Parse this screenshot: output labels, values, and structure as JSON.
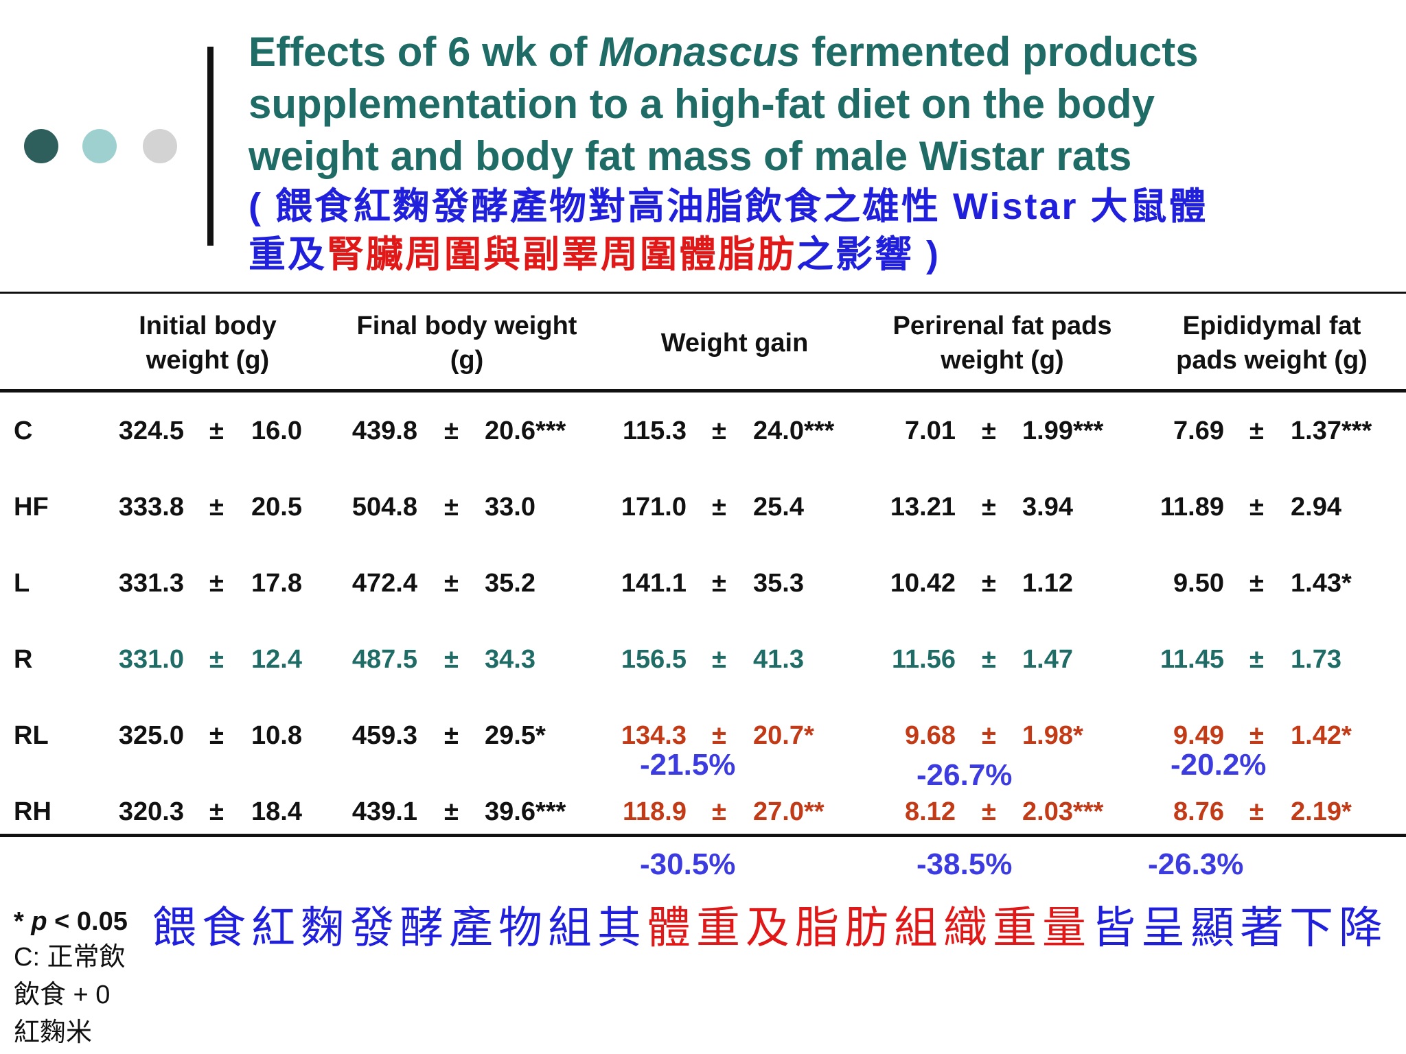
{
  "colors": {
    "teal_title": "#1f6b66",
    "blue": "#1f1fdc",
    "red": "#e01818",
    "teal_row": "#1f6b66",
    "orange_row": "#c23a16",
    "pct_blue": "#3b3be0",
    "dot1": "#2e5f5d",
    "dot2": "#9fd0d0",
    "dot3": "#d3d3d3"
  },
  "title": {
    "line1_a": "Effects of 6 wk of ",
    "line1_italic": "Monascus",
    "line1_b": " fermented products",
    "line2": "supplementation to a high-fat diet on the body",
    "line3": "weight and body fat mass of male Wistar rats",
    "zh_line1": "( 餵食紅麴發酵產物對高油脂飲食之雄性  Wistar 大鼠體",
    "zh_line2_a": "重及",
    "zh_line2_red": "腎臟周圍與副睪周圍體脂肪",
    "zh_line2_b": "之影響 )"
  },
  "table": {
    "headers": [
      {
        "line1": "Initial body",
        "line2": "weight (g)"
      },
      {
        "line1": "Final body weight",
        "line2": "(g)"
      },
      {
        "line1": "Weight gain",
        "line2": ""
      },
      {
        "line1": "Perirenal fat pads",
        "line2": "weight (g)"
      },
      {
        "line1": "Epididymal fat",
        "line2": "pads weight (g)"
      }
    ],
    "pm": "±",
    "rows": [
      {
        "label": "C",
        "style": "black",
        "cells": [
          {
            "mean": "324.5",
            "sd": "16.0"
          },
          {
            "mean": "439.8",
            "sd": "20.6***"
          },
          {
            "mean": "115.3",
            "sd": "24.0***"
          },
          {
            "mean": "7.01",
            "sd": "1.99***"
          },
          {
            "mean": "7.69",
            "sd": "1.37***"
          }
        ]
      },
      {
        "label": "HF",
        "style": "black",
        "cells": [
          {
            "mean": "333.8",
            "sd": "20.5"
          },
          {
            "mean": "504.8",
            "sd": "33.0"
          },
          {
            "mean": "171.0",
            "sd": "25.4"
          },
          {
            "mean": "13.21",
            "sd": "3.94"
          },
          {
            "mean": "11.89",
            "sd": "2.94"
          }
        ]
      },
      {
        "label": "L",
        "style": "black",
        "cells": [
          {
            "mean": "331.3",
            "sd": "17.8"
          },
          {
            "mean": "472.4",
            "sd": "35.2"
          },
          {
            "mean": "141.1",
            "sd": "35.3"
          },
          {
            "mean": "10.42",
            "sd": "1.12"
          },
          {
            "mean": "9.50",
            "sd": "1.43*"
          }
        ]
      },
      {
        "label": "R",
        "style": "teal",
        "cells": [
          {
            "mean": "331.0",
            "sd": "12.4"
          },
          {
            "mean": "487.5",
            "sd": "34.3"
          },
          {
            "mean": "156.5",
            "sd": "41.3"
          },
          {
            "mean": "11.56",
            "sd": "1.47"
          },
          {
            "mean": "11.45",
            "sd": "1.73"
          }
        ]
      },
      {
        "label": "RL",
        "style": "mixed",
        "cells": [
          {
            "mean": "325.0",
            "sd": "10.8"
          },
          {
            "mean": "459.3",
            "sd": "29.5*"
          },
          {
            "mean": "134.3",
            "sd": "20.7*"
          },
          {
            "mean": "9.68",
            "sd": "1.98*"
          },
          {
            "mean": "9.49",
            "sd": "1.42*"
          }
        ]
      },
      {
        "label": "RH",
        "style": "mixed",
        "cells": [
          {
            "mean": "320.3",
            "sd": "18.4"
          },
          {
            "mean": "439.1",
            "sd": "39.6***"
          },
          {
            "mean": "118.9",
            "sd": "27.0**"
          },
          {
            "mean": "8.12",
            "sd": "2.03***"
          },
          {
            "mean": "8.76",
            "sd": "2.19*"
          }
        ]
      }
    ],
    "pct_rl": [
      "-21.5%",
      "-26.7%",
      "-20.2%"
    ],
    "pct_rh": [
      "-30.5%",
      "-38.5%",
      "-26.3%"
    ]
  },
  "footnote": {
    "line1_star": "* ",
    "line1_p": "p",
    "line1_rest": " < 0.05",
    "line2": "C:  正常飲",
    "line3": "飲食  + 0",
    "line4": "紅麴米"
  },
  "summary": {
    "part1": "餵食紅麴發酵產物組其",
    "part2_red": "體重及脂肪組織重量",
    "part3": "皆呈顯著下降"
  }
}
